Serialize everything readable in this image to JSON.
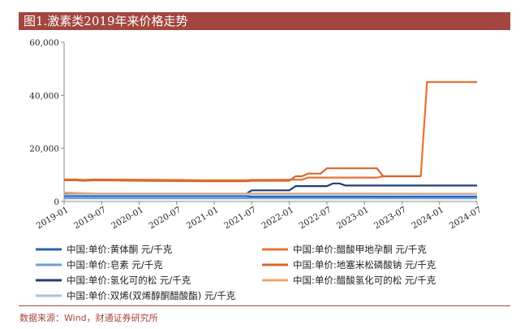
{
  "title": "图1.激素类2019年来价格走势",
  "source": "数据来源：Wind，财通证券研究所",
  "chart_data": {
    "type": "line",
    "title": "",
    "xlabel": "",
    "ylabel": "",
    "ylim": [
      0,
      60000
    ],
    "yticks": [
      0,
      20000,
      40000,
      60000
    ],
    "ytick_labels": [
      "0",
      "20,000",
      "40,000",
      "60,000"
    ],
    "xlim": [
      "2019-01",
      "2024-07"
    ],
    "xtick_labels": [
      "2019-01",
      "2019-07",
      "2020-01",
      "2020-07",
      "2021-01",
      "2021-07",
      "2022-01",
      "2022-07",
      "2023-01",
      "2023-07",
      "2024-01",
      "2024-07"
    ],
    "grid": false,
    "legend_position": "bottom",
    "series": [
      {
        "name": "中国:单价:黄体酮 元/千克",
        "color": "#2e62b2",
        "points": [
          [
            "2019-01",
            2000
          ],
          [
            "2021-06",
            2000
          ],
          [
            "2021-07",
            1800
          ],
          [
            "2024-07",
            1800
          ]
        ]
      },
      {
        "name": "中国:单价:醋酸甲地孕酮 元/千克",
        "color": "#e8732f",
        "points": [
          [
            "2019-01",
            8300
          ],
          [
            "2019-03",
            8300
          ],
          [
            "2019-04",
            8100
          ],
          [
            "2019-06",
            8300
          ],
          [
            "2020-01",
            8200
          ],
          [
            "2020-07",
            8100
          ],
          [
            "2021-01",
            8000
          ],
          [
            "2021-06",
            8000
          ],
          [
            "2021-07",
            8100
          ],
          [
            "2022-01",
            8200
          ],
          [
            "2022-03",
            8200
          ],
          [
            "2022-04",
            9000
          ],
          [
            "2023-03",
            9000
          ],
          [
            "2023-04",
            9500
          ],
          [
            "2023-10",
            9500
          ],
          [
            "2023-11",
            45000
          ],
          [
            "2024-07",
            45000
          ]
        ]
      },
      {
        "name": "中国:单价:皂素 元/千克",
        "color": "#6fa1d6",
        "points": [
          [
            "2019-01",
            1200
          ],
          [
            "2024-07",
            1200
          ]
        ]
      },
      {
        "name": "中国:单价:地塞米松磷酸钠 元/千克",
        "color": "#d9662d",
        "points": [
          [
            "2019-01",
            8000
          ],
          [
            "2019-03",
            8000
          ],
          [
            "2019-04",
            7800
          ],
          [
            "2019-06",
            8000
          ],
          [
            "2020-01",
            7800
          ],
          [
            "2021-01",
            7600
          ],
          [
            "2021-06",
            7600
          ],
          [
            "2021-07",
            7800
          ],
          [
            "2022-01",
            7800
          ],
          [
            "2022-02",
            9500
          ],
          [
            "2022-03",
            9500
          ],
          [
            "2022-04",
            10500
          ],
          [
            "2022-06",
            10500
          ],
          [
            "2022-07",
            12500
          ],
          [
            "2023-03",
            12500
          ],
          [
            "2023-04",
            9500
          ],
          [
            "2023-10",
            9500
          ]
        ]
      },
      {
        "name": "中国:单价:氢化可的松 元/千克",
        "color": "#1f3f73",
        "points": [
          [
            "2019-01",
            2800
          ],
          [
            "2021-06",
            2800
          ],
          [
            "2021-07",
            4200
          ],
          [
            "2022-01",
            4200
          ],
          [
            "2022-02",
            5800
          ],
          [
            "2022-07",
            5800
          ],
          [
            "2022-08",
            6800
          ],
          [
            "2022-09",
            6800
          ],
          [
            "2022-10",
            6000
          ],
          [
            "2024-07",
            6000
          ]
        ]
      },
      {
        "name": "中国:单价:醋酸氢化可的松 元/千克",
        "color": "#f3a366",
        "points": [
          [
            "2019-01",
            3400
          ],
          [
            "2019-06",
            3000
          ],
          [
            "2020-01",
            3000
          ],
          [
            "2021-01",
            3000
          ],
          [
            "2021-06",
            3000
          ],
          [
            "2021-07",
            3000
          ],
          [
            "2022-01",
            3000
          ],
          [
            "2022-07",
            3000
          ],
          [
            "2023-01",
            3000
          ],
          [
            "2024-07",
            2900
          ]
        ]
      },
      {
        "name": "中国:单价:双烯(双烯醇酮醋酸酯) 元/千克",
        "color": "#a9c3dd",
        "points": [
          [
            "2019-01",
            2600
          ],
          [
            "2024-07",
            2600
          ]
        ]
      }
    ]
  }
}
